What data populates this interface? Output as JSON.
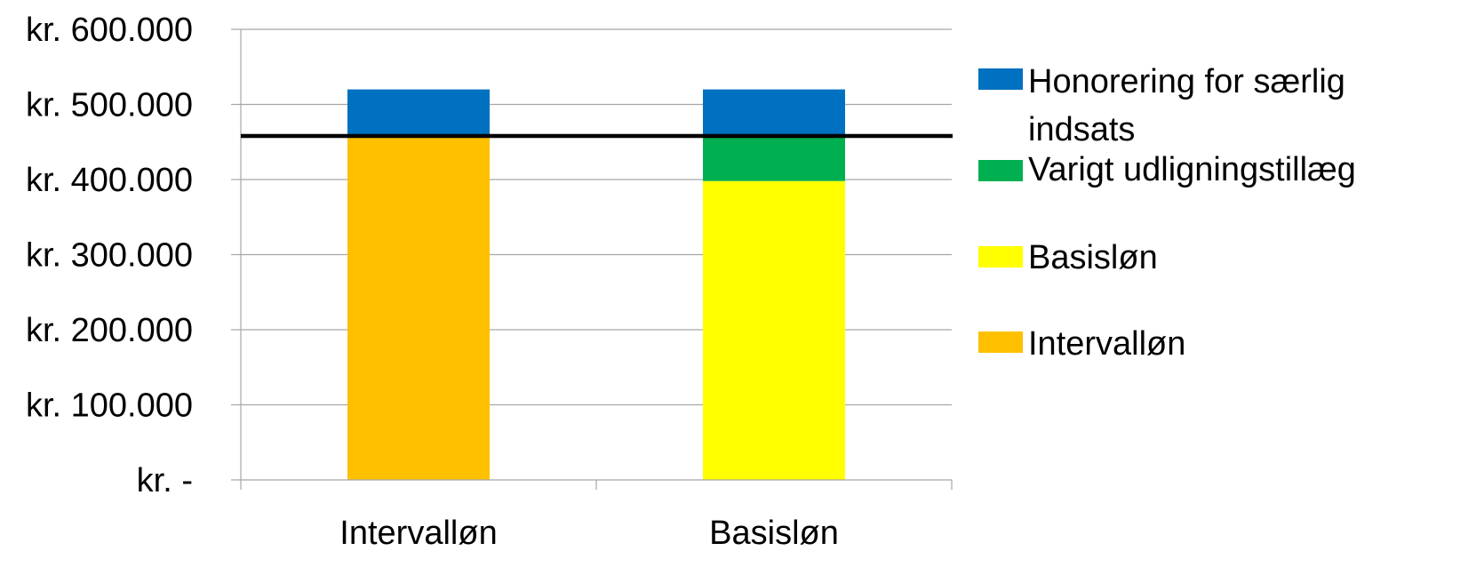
{
  "chart_data": {
    "type": "bar",
    "stacked": true,
    "categories": [
      "Intervalløn",
      "Basisløn"
    ],
    "ylim": [
      0,
      600000
    ],
    "yticks": [
      0,
      100000,
      200000,
      300000,
      400000,
      500000,
      600000
    ],
    "ytick_labels": [
      "kr. -",
      "kr. 100.000",
      "kr. 200.000",
      "kr. 300.000",
      "kr. 400.000",
      "kr. 500.000",
      "kr. 600.000"
    ],
    "grid": true,
    "reference_line": {
      "value": 458000,
      "color": "#000000"
    },
    "series": [
      {
        "name": "Intervalløn",
        "color": "#FFC000",
        "values": [
          458000,
          0
        ]
      },
      {
        "name": "Basisløn",
        "color": "#FFFF00",
        "values": [
          0,
          398000
        ]
      },
      {
        "name": "Varigt udligningstillæg",
        "color": "#00B050",
        "values": [
          0,
          60000
        ]
      },
      {
        "name": "Honorering for særlig indsats",
        "color": "#0070C0",
        "values": [
          62000,
          62000
        ]
      }
    ],
    "legend": {
      "position": "right",
      "entries": [
        {
          "lines": [
            "Honorering for særlig",
            "indsats"
          ],
          "color": "#0070C0"
        },
        {
          "lines": [
            "Varigt udligningstillæg"
          ],
          "color": "#00B050"
        },
        {
          "lines": [
            "Basisløn"
          ],
          "color": "#FFFF00"
        },
        {
          "lines": [
            "Intervalløn"
          ],
          "color": "#FFC000"
        }
      ]
    }
  }
}
